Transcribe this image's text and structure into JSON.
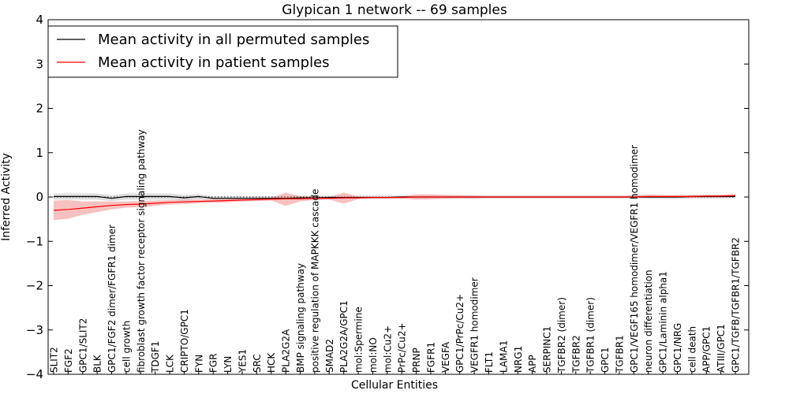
{
  "chart_data": {
    "type": "line",
    "title": "Glypican 1 network -- 69 samples",
    "xlabel": "Cellular Entities",
    "ylabel": "Inferred Activity",
    "ylim": [
      -4,
      4
    ],
    "yticks": [
      "−4",
      "−3",
      "−2",
      "−1",
      "0",
      "1",
      "2",
      "3",
      "4"
    ],
    "grid": false,
    "legend_position": "top-left",
    "categories": [
      "SLIT2",
      "FGF2",
      "GPC1/SLIT2",
      "BLK",
      "GPC1/FGF2 dimer/FGFR1 dimer",
      "cell growth",
      "fibroblast growth factor receptor signaling pathway",
      "TDGF1",
      "LCK",
      "CRIPTO/GPC1",
      "FYN",
      "FGR",
      "LYN",
      "YES1",
      "SRC",
      "HCK",
      "PLA2G2A",
      "BMP signaling pathway",
      "positive regulation of MAPKKK cascade",
      "SMAD2",
      "PLA2G2A/GPC1",
      "mol:Spermine",
      "mol:NO",
      "mol:Cu2+",
      "PrPc/Cu2+",
      "PRNP",
      "FGFR1",
      "VEGFA",
      "GPC1/PrPc/Cu2+",
      "VEGFR1 homodimer",
      "FLT1",
      "LAMA1",
      "NRG1",
      "APP",
      "SERPINC1",
      "TGFBR2 (dimer)",
      "TGFBR2",
      "TGFBR1 (dimer)",
      "GPC1",
      "TGFBR1",
      "GPC1/VEGF165 homodimer/VEGFR1 homodimer",
      "neuron differentiation",
      "GPC1/Laminin alpha1",
      "GPC1/NRG",
      "cell death",
      "APP/GPC1",
      "ATIII/GPC1",
      "GPC1/TGFB/TGFBR1/TGFBR2"
    ],
    "series": [
      {
        "name": "Mean activity in all permuted samples",
        "color": "#000000",
        "band_color": "#d3d3d3",
        "values": [
          0.01,
          0.01,
          0.01,
          0.01,
          -0.03,
          0.01,
          0.01,
          0.01,
          0.01,
          -0.02,
          0.01,
          -0.03,
          -0.03,
          -0.03,
          -0.03,
          -0.03,
          -0.03,
          -0.02,
          -0.02,
          -0.01,
          -0.01,
          -0.01,
          -0.01,
          -0.01,
          0.0,
          0.0,
          0.0,
          0.0,
          0.0,
          0.0,
          0.0,
          0.0,
          0.0,
          0.0,
          0.0,
          0.0,
          0.0,
          0.0,
          0.0,
          0.0,
          0.0,
          0.0,
          0.0,
          0.0,
          0.01,
          0.01,
          0.01,
          0.01
        ],
        "lower": [
          -0.06,
          -0.06,
          -0.06,
          -0.06,
          -0.09,
          -0.06,
          -0.06,
          -0.06,
          -0.06,
          -0.08,
          -0.05,
          -0.08,
          -0.08,
          -0.08,
          -0.07,
          -0.07,
          -0.07,
          -0.06,
          -0.06,
          -0.05,
          -0.05,
          -0.05,
          -0.04,
          -0.04,
          -0.04,
          -0.04,
          -0.04,
          -0.04,
          -0.04,
          -0.04,
          -0.04,
          -0.04,
          -0.04,
          -0.04,
          -0.04,
          -0.04,
          -0.04,
          -0.04,
          -0.04,
          -0.04,
          -0.04,
          -0.04,
          -0.04,
          -0.04,
          -0.03,
          -0.03,
          -0.03,
          -0.03
        ],
        "upper": [
          0.08,
          0.08,
          0.08,
          0.08,
          0.04,
          0.08,
          0.08,
          0.08,
          0.08,
          0.05,
          0.06,
          0.02,
          0.02,
          0.02,
          0.02,
          0.02,
          0.02,
          0.03,
          0.03,
          0.03,
          0.03,
          0.03,
          0.03,
          0.03,
          0.04,
          0.04,
          0.04,
          0.04,
          0.04,
          0.04,
          0.04,
          0.04,
          0.04,
          0.04,
          0.04,
          0.04,
          0.04,
          0.04,
          0.04,
          0.04,
          0.04,
          0.04,
          0.04,
          0.04,
          0.05,
          0.05,
          0.05,
          0.05
        ]
      },
      {
        "name": "Mean activity in patient samples",
        "color": "#ff0000",
        "band_color": "#f4a0a0",
        "values": [
          -0.3,
          -0.28,
          -0.25,
          -0.22,
          -0.19,
          -0.17,
          -0.16,
          -0.14,
          -0.12,
          -0.11,
          -0.1,
          -0.09,
          -0.08,
          -0.07,
          -0.06,
          -0.05,
          -0.04,
          -0.04,
          -0.03,
          -0.03,
          -0.02,
          -0.02,
          -0.01,
          -0.01,
          -0.01,
          0.0,
          0.0,
          0.0,
          0.0,
          0.0,
          0.0,
          0.0,
          0.0,
          0.0,
          0.0,
          0.0,
          0.0,
          0.0,
          0.0,
          0.0,
          0.0,
          0.01,
          0.01,
          0.01,
          0.01,
          0.02,
          0.02,
          0.03
        ],
        "lower": [
          -0.52,
          -0.49,
          -0.4,
          -0.34,
          -0.28,
          -0.24,
          -0.23,
          -0.2,
          -0.17,
          -0.16,
          -0.14,
          -0.13,
          -0.12,
          -0.1,
          -0.09,
          -0.08,
          -0.2,
          -0.1,
          -0.07,
          -0.06,
          -0.15,
          -0.05,
          -0.03,
          -0.03,
          -0.03,
          -0.06,
          -0.05,
          -0.04,
          -0.03,
          -0.03,
          -0.02,
          -0.02,
          -0.02,
          -0.02,
          -0.02,
          -0.02,
          -0.02,
          -0.02,
          -0.02,
          -0.02,
          -0.02,
          -0.02,
          -0.02,
          -0.02,
          -0.02,
          -0.01,
          -0.01,
          0.0
        ],
        "upper": [
          -0.08,
          -0.07,
          -0.1,
          -0.1,
          -0.1,
          -0.1,
          -0.09,
          -0.08,
          -0.07,
          -0.06,
          -0.06,
          -0.05,
          -0.04,
          -0.04,
          -0.03,
          -0.02,
          0.1,
          0.02,
          0.01,
          0.0,
          0.1,
          0.01,
          0.01,
          0.01,
          0.01,
          0.06,
          0.06,
          0.05,
          0.04,
          0.03,
          0.02,
          0.02,
          0.02,
          0.02,
          0.02,
          0.02,
          0.02,
          0.02,
          0.02,
          0.02,
          0.04,
          0.05,
          0.04,
          0.04,
          0.04,
          0.05,
          0.05,
          0.07
        ]
      }
    ],
    "baseline": 0
  }
}
